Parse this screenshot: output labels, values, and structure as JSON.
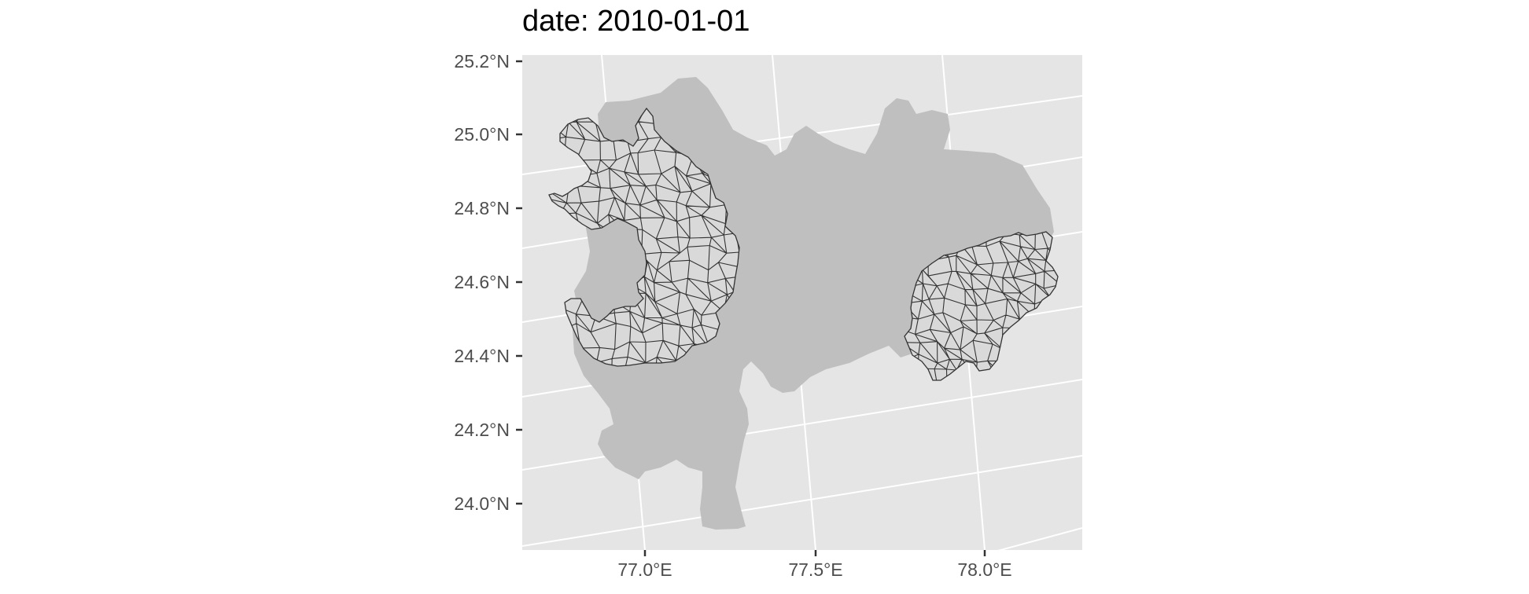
{
  "title": "date: 2010-01-01",
  "map": {
    "type": "choropleth-outline",
    "y_ticks": [
      "25.2°N",
      "25.0°N",
      "24.8°N",
      "24.6°N",
      "24.4°N",
      "24.2°N",
      "24.0°N"
    ],
    "x_ticks": [
      "77.0°E",
      "77.5°E",
      "78.0°E"
    ],
    "colors": {
      "panel": "#e5e5e5",
      "grid": "#ffffff",
      "region_fill": "#bfbfbf",
      "unit_fill": "#d9d9d9",
      "unit_stroke": "#333333",
      "tick": "#333333"
    }
  }
}
